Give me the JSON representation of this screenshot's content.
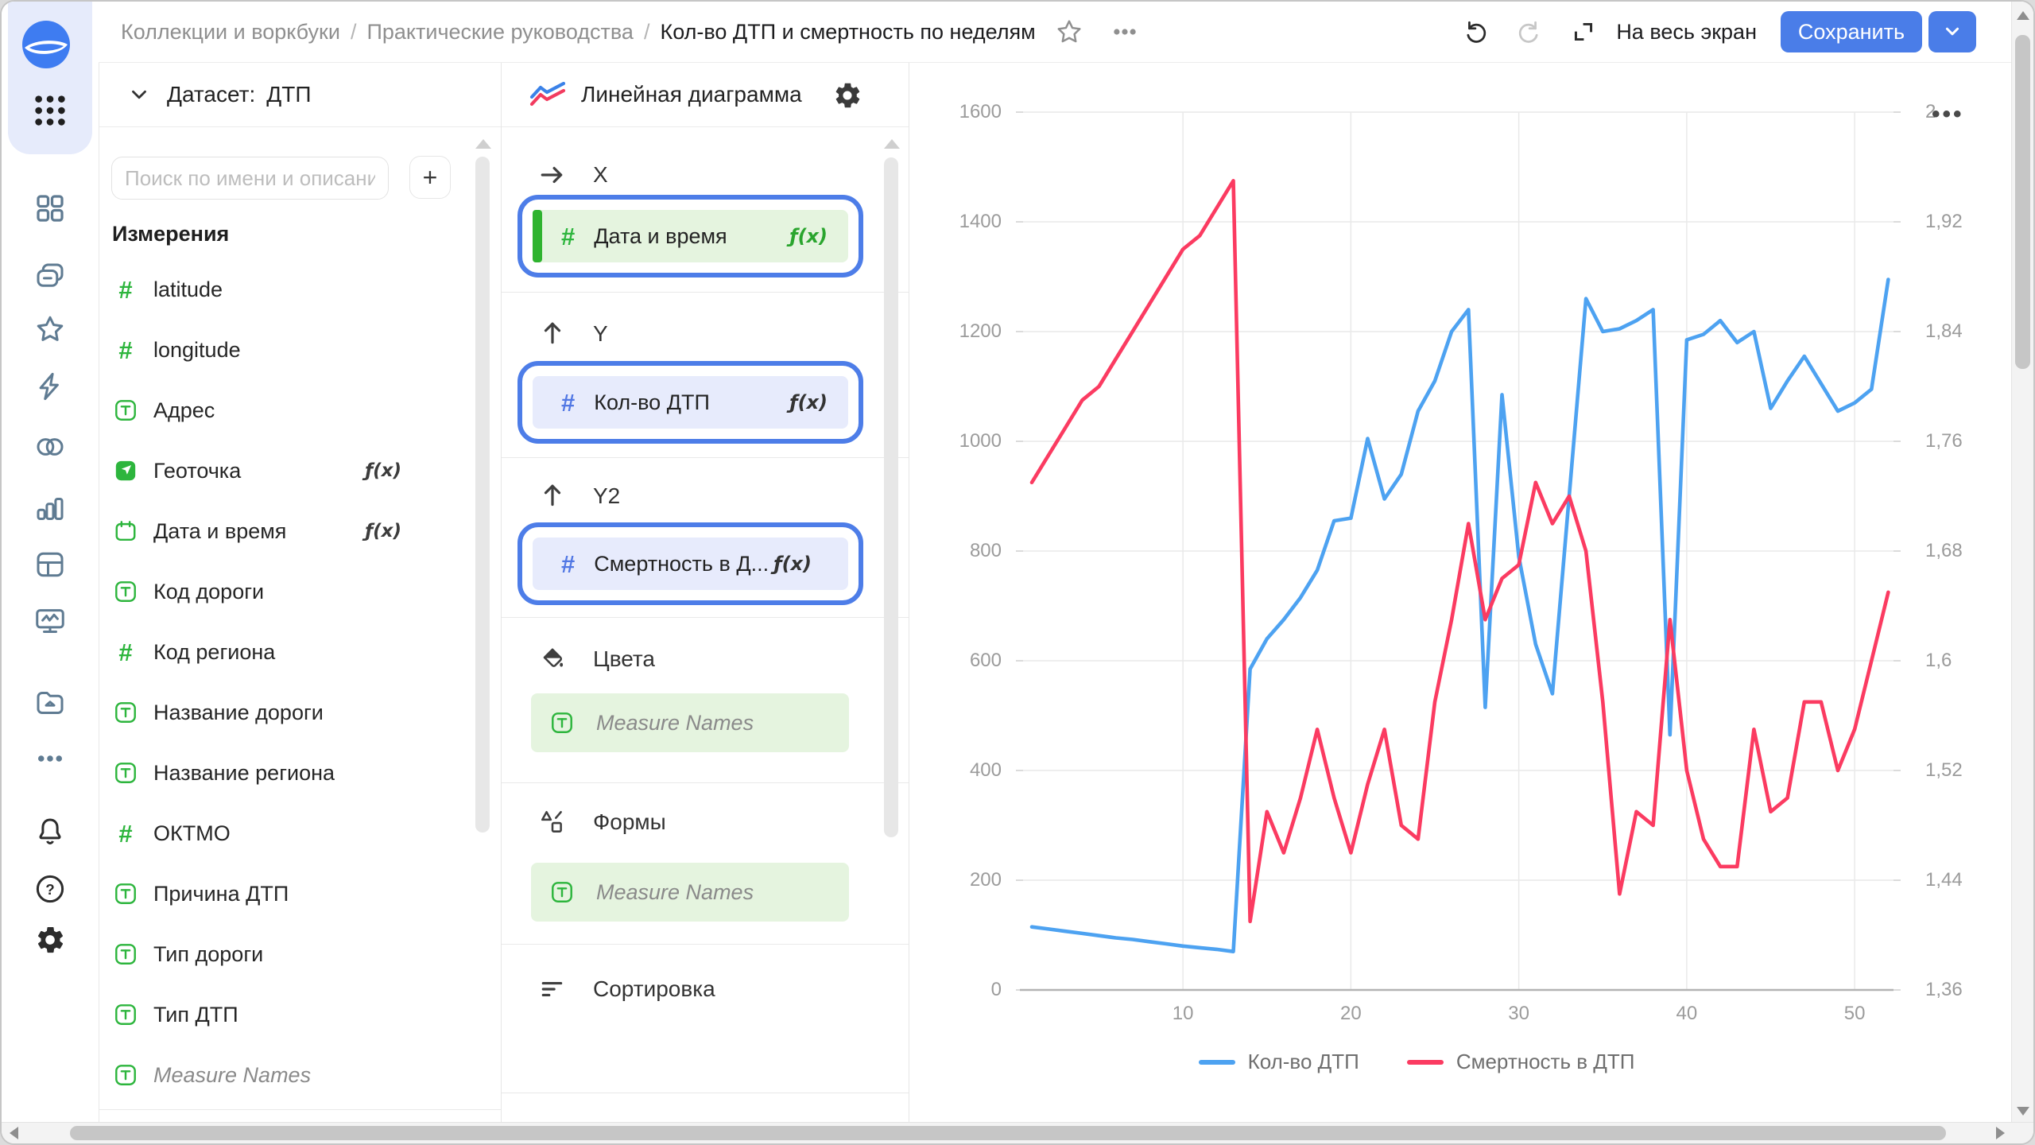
{
  "colors": {
    "accent_blue": "#4a7de8",
    "field_green": "#2db53d",
    "measure_blue": "#5278e4",
    "series_blue": "#4da2f1",
    "series_red": "#fb3b61"
  },
  "sidebar": {
    "logo_icon": "datalens-logo",
    "apps_icon": "nine-dots-grid",
    "items": [
      {
        "icon": "grid-icon"
      },
      {
        "icon": "workbooks-icon"
      },
      {
        "icon": "favorites-star-icon"
      },
      {
        "icon": "functions-bolt-icon"
      },
      {
        "icon": "connections-icon"
      },
      {
        "icon": "charts-icon"
      },
      {
        "icon": "tables-icon"
      },
      {
        "icon": "monitoring-icon"
      },
      {
        "icon": "storage-folder-icon"
      },
      {
        "icon": "more-ellipsis-icon"
      }
    ],
    "bottom_items": [
      {
        "icon": "bell-icon"
      },
      {
        "icon": "help-icon"
      },
      {
        "icon": "settings-gear-icon"
      }
    ]
  },
  "topbar": {
    "breadcrumbs": [
      "Коллекции и воркбуки",
      "Практические руководства",
      "Кол-во ДТП и смертность по неделям"
    ],
    "star_icon": "favorite-star-icon",
    "more_icon": "more-ellipsis-icon",
    "undo_icon": "undo-icon",
    "redo_icon": "redo-icon",
    "fullscreen_icon": "fullscreen-icon",
    "fullscreen_label": "На весь экран",
    "save_label": "Сохранить",
    "save_menu_icon": "chevron-down-icon"
  },
  "dataset_panel": {
    "collapse_icon": "chevron-down-icon",
    "dataset_label": "Датасет:",
    "dataset_name": "ДТП",
    "search_placeholder": "Поиск по имени и описанию",
    "add_button_label": "+",
    "dimensions_title": "Измерения",
    "fields": [
      {
        "name": "latitude",
        "type": "number"
      },
      {
        "name": "longitude",
        "type": "number"
      },
      {
        "name": "Адрес",
        "type": "text"
      },
      {
        "name": "Геоточка",
        "type": "geopoint",
        "formula": true
      },
      {
        "name": "Дата и время",
        "type": "date",
        "formula": true
      },
      {
        "name": "Код дороги",
        "type": "text"
      },
      {
        "name": "Код региона",
        "type": "number"
      },
      {
        "name": "Название дороги",
        "type": "text"
      },
      {
        "name": "Название региона",
        "type": "text"
      },
      {
        "name": "ОКТМО",
        "type": "number"
      },
      {
        "name": "Причина ДТП",
        "type": "text"
      },
      {
        "name": "Тип дороги",
        "type": "text"
      },
      {
        "name": "Тип ДТП",
        "type": "text"
      },
      {
        "name": "Measure Names",
        "type": "text",
        "italic": true
      }
    ],
    "formula_badge": "ƒ(x)"
  },
  "config_panel": {
    "chart_type_icon": "line-chart-icon",
    "chart_type": "Линейная диаграмма",
    "settings_icon": "gear-icon",
    "sections": {
      "x": {
        "label": "X",
        "icon": "arrow-right-icon",
        "field": {
          "name": "Дата и время",
          "fx": "ƒ(x)",
          "kind": "dimension"
        }
      },
      "y": {
        "label": "Y",
        "icon": "arrow-up-icon",
        "field": {
          "name": "Кол-во ДТП",
          "fx": "ƒ(x)",
          "kind": "measure"
        }
      },
      "y2": {
        "label": "Y2",
        "icon": "arrow-up-icon",
        "field": {
          "name": "Смертность в Д...",
          "fx": "ƒ(x)",
          "kind": "measure"
        }
      },
      "colors": {
        "label": "Цвета",
        "icon": "paint-bucket-icon",
        "placeholder": "Measure Names"
      },
      "shapes": {
        "label": "Формы",
        "icon": "shapes-icon",
        "placeholder": "Measure Names"
      },
      "sort": {
        "label": "Сортировка",
        "icon": "sort-icon"
      }
    }
  },
  "chart_data": {
    "type": "line",
    "title": "",
    "xlabel": "",
    "ylabel_left": "",
    "ylabel_right": "",
    "x": [
      1,
      2,
      3,
      4,
      5,
      6,
      7,
      8,
      9,
      10,
      11,
      12,
      13,
      14,
      15,
      16,
      17,
      18,
      19,
      20,
      21,
      22,
      23,
      24,
      25,
      26,
      27,
      28,
      29,
      30,
      31,
      32,
      33,
      34,
      35,
      36,
      37,
      38,
      39,
      40,
      41,
      42,
      43,
      44,
      45,
      46,
      47,
      48,
      49,
      50,
      51,
      52
    ],
    "x_tick_labels": [
      "10",
      "20",
      "30",
      "40",
      "50"
    ],
    "x_tick_values": [
      10,
      20,
      30,
      40,
      50
    ],
    "y_left_axis": {
      "min": 0,
      "max": 1600,
      "tick_labels": [
        "1600",
        "1400",
        "1200",
        "1000",
        "800",
        "600",
        "400",
        "200",
        "0"
      ],
      "tick_values": [
        1600,
        1400,
        1200,
        1000,
        800,
        600,
        400,
        200,
        0
      ]
    },
    "y_right_axis": {
      "min": 1.36,
      "max": 2,
      "tick_labels": [
        "2",
        "1,92",
        "1,84",
        "1,76",
        "1,68",
        "1,6",
        "1,52",
        "1,44",
        "1,36"
      ],
      "tick_values": [
        2,
        1.92,
        1.84,
        1.76,
        1.68,
        1.6,
        1.52,
        1.44,
        1.36
      ]
    },
    "grid": true,
    "legend_position": "bottom",
    "series": [
      {
        "name": "Кол-во ДТП",
        "axis": "left",
        "color": "#4da2f1",
        "values": [
          115,
          111,
          107,
          103,
          99,
          95,
          92,
          88,
          84,
          80,
          77,
          74,
          70,
          585,
          640,
          675,
          715,
          765,
          855,
          860,
          1005,
          895,
          940,
          1055,
          1110,
          1200,
          1240,
          515,
          1085,
          790,
          630,
          540,
          900,
          1260,
          1200,
          1205,
          1220,
          1240,
          465,
          1185,
          1195,
          1220,
          1180,
          1200,
          1060,
          1110,
          1155,
          1105,
          1055,
          1070,
          1095,
          1295
        ]
      },
      {
        "name": "Смертность в ДТП",
        "axis": "right",
        "color": "#fb3b61",
        "values": [
          1.73,
          1.75,
          1.77,
          1.79,
          1.8,
          1.82,
          1.84,
          1.86,
          1.88,
          1.9,
          1.91,
          1.93,
          1.95,
          1.41,
          1.49,
          1.46,
          1.5,
          1.55,
          1.5,
          1.46,
          1.51,
          1.55,
          1.48,
          1.47,
          1.57,
          1.63,
          1.7,
          1.63,
          1.66,
          1.67,
          1.73,
          1.7,
          1.72,
          1.68,
          1.57,
          1.43,
          1.49,
          1.48,
          1.63,
          1.52,
          1.47,
          1.45,
          1.45,
          1.55,
          1.49,
          1.5,
          1.57,
          1.57,
          1.52,
          1.55,
          1.6,
          1.65
        ]
      }
    ],
    "menu_icon": "more-ellipsis-icon"
  }
}
